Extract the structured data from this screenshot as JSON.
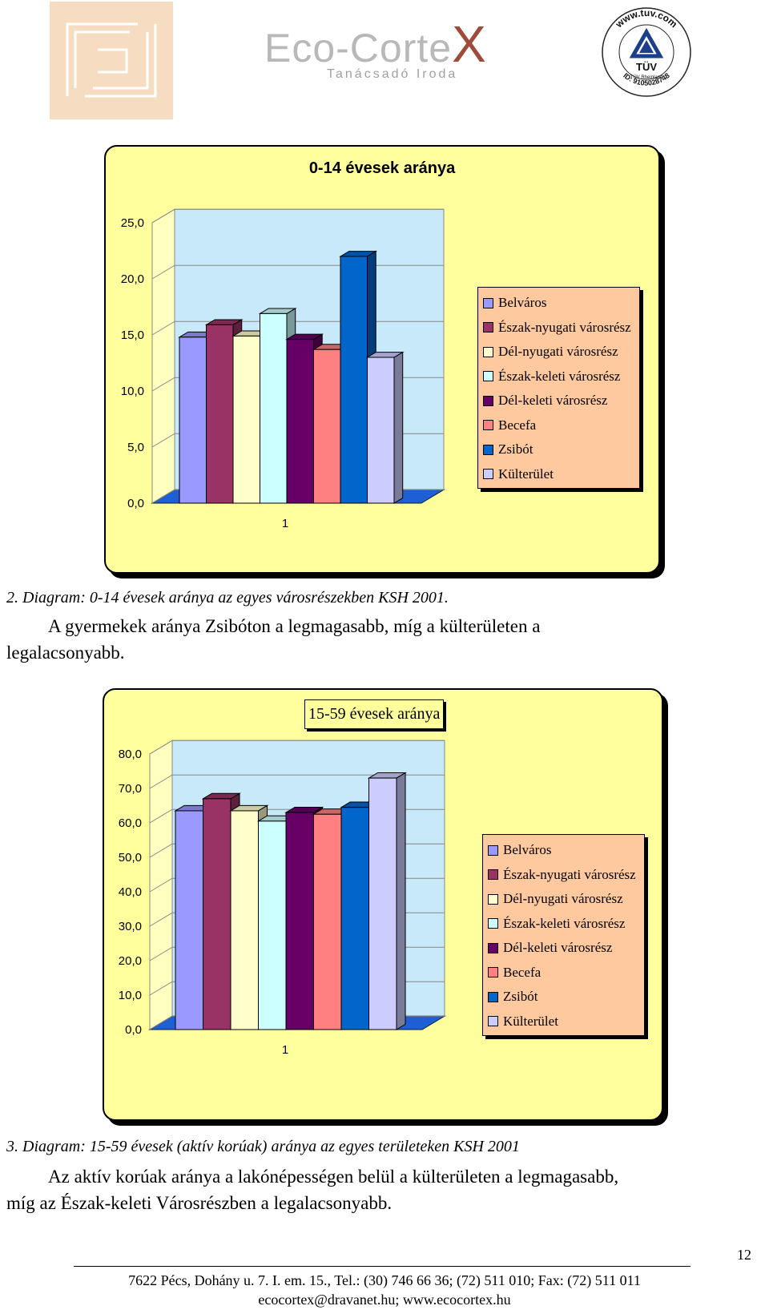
{
  "header": {
    "brand_name": "Eco-Corte",
    "brand_mark": "X",
    "brand_sub": "Tanácsadó Iroda",
    "cert_url": "www.tuv.com",
    "cert_name": "TÜV",
    "cert_sub": "TÜV Rheinland",
    "cert_id": "ID: 9105028748"
  },
  "colors": {
    "panel_bg": "#ffff9e",
    "legend_bg": "#fec99e",
    "plot_wall": "#c7e9f9",
    "plot_floor": "#1f5fd6"
  },
  "chart_data": [
    {
      "type": "bar",
      "title": "0-14 évesek aránya",
      "categories": [
        "1"
      ],
      "ylim": [
        0,
        25
      ],
      "y_ticks": [
        "0,0",
        "5,0",
        "10,0",
        "15,0",
        "20,0",
        "25,0"
      ],
      "legend_position": "right",
      "series": [
        {
          "name": "Belváros",
          "color": "#9999ff",
          "values": [
            14.8
          ]
        },
        {
          "name": "Észak-nyugati városrész",
          "color": "#993366",
          "values": [
            15.9
          ]
        },
        {
          "name": "Dél-nyugati városrész",
          "color": "#ffffcc",
          "values": [
            14.9
          ]
        },
        {
          "name": "Észak-keleti városrész",
          "color": "#ccffff",
          "values": [
            16.9
          ]
        },
        {
          "name": "Dél-keleti városrész",
          "color": "#660066",
          "values": [
            14.6
          ]
        },
        {
          "name": "Becefa",
          "color": "#ff8080",
          "values": [
            13.7
          ]
        },
        {
          "name": "Zsibót",
          "color": "#0066cc",
          "values": [
            22.0
          ]
        },
        {
          "name": "Külterület",
          "color": "#ccccff",
          "values": [
            13.0
          ]
        }
      ]
    },
    {
      "type": "bar",
      "title": "15-59 évesek aránya",
      "categories": [
        "1"
      ],
      "ylim": [
        0,
        80
      ],
      "y_ticks": [
        "0,0",
        "10,0",
        "20,0",
        "30,0",
        "40,0",
        "50,0",
        "60,0",
        "70,0",
        "80,0"
      ],
      "legend_position": "right",
      "series": [
        {
          "name": "Belváros",
          "color": "#9999ff",
          "values": [
            63.5
          ]
        },
        {
          "name": "Észak-nyugati városrész",
          "color": "#993366",
          "values": [
            67.0
          ]
        },
        {
          "name": "Dél-nyugati városrész",
          "color": "#ffffcc",
          "values": [
            63.5
          ]
        },
        {
          "name": "Észak-keleti városrész",
          "color": "#ccffff",
          "values": [
            60.5
          ]
        },
        {
          "name": "Dél-keleti városrész",
          "color": "#660066",
          "values": [
            63.0
          ]
        },
        {
          "name": "Becefa",
          "color": "#ff8080",
          "values": [
            62.5
          ]
        },
        {
          "name": "Zsibót",
          "color": "#0066cc",
          "values": [
            64.5
          ]
        },
        {
          "name": "Külterület",
          "color": "#ccccff",
          "values": [
            73.0
          ]
        }
      ]
    }
  ],
  "captions": [
    "2. Diagram: 0-14 évesek aránya az egyes városrészekben KSH 2001.",
    "3. Diagram: 15-59 évesek (aktív korúak) aránya az egyes területeken KSH 2001"
  ],
  "paragraphs": [
    {
      "line1": "A gyermekek aránya Zsibóton a legmagasabb, míg a külterületen a",
      "line2": "legalacsonyabb."
    },
    {
      "line1": "Az aktív korúak aránya a lakónépességen belül a külterületen a legmagasabb,",
      "line2": "míg az Észak-keleti Városrészben a legalacsonyabb."
    }
  ],
  "footer": {
    "page_number": "12",
    "address_line": "7622 Pécs, Dohány u. 7. I. em. 15., Tel.: (30) 746 66 36; (72) 511 010; Fax: (72) 511 011",
    "contact_line": "ecocortex@dravanet.hu; www.ecocortex.hu"
  }
}
